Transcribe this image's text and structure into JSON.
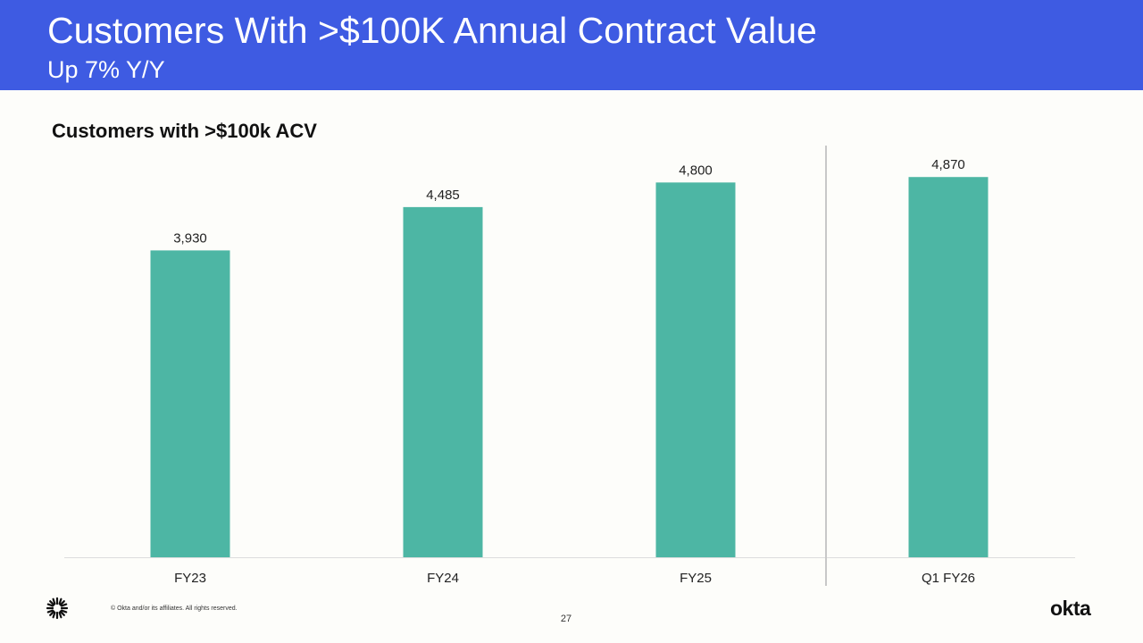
{
  "slide": {
    "title": "Customers With >$100K Annual Contract Value",
    "subtitle": "Up 7% Y/Y",
    "page_number": "27",
    "copyright": "© Okta and/or its affiliates. All rights reserved.",
    "brand": "okta"
  },
  "colors": {
    "header_bg": "#3e5be2",
    "bar": "#4db6a4",
    "divider": "#c8c8c8",
    "background": "#fdfdfa"
  },
  "icons": {
    "footer_mark": "okta-sunburst-icon"
  },
  "chart_data": {
    "type": "bar",
    "title": "Customers with >$100k ACV",
    "categories": [
      "FY23",
      "FY24",
      "FY25",
      "Q1 FY26"
    ],
    "values": [
      3930,
      4485,
      4800,
      4870
    ],
    "value_labels": [
      "3,930",
      "4,485",
      "4,800",
      "4,870"
    ],
    "xlabel": "",
    "ylabel": "",
    "ylim": [
      0,
      5250
    ],
    "grid": false,
    "legend": "none",
    "divider_before_category": "Q1 FY26"
  }
}
